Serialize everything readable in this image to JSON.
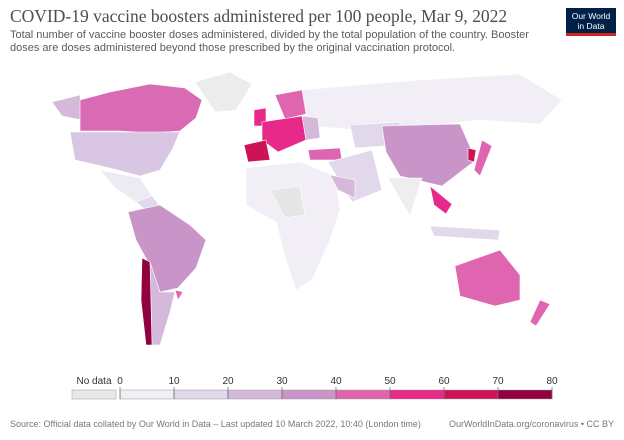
{
  "header": {
    "title": "COVID-19 vaccine boosters administered per 100 people, Mar 9, 2022",
    "subtitle": "Total number of vaccine booster doses administered, divided by the total population of the country. Booster doses are doses administered beyond those prescribed by the original vaccination protocol.",
    "logo": [
      "Our World",
      "in Data"
    ]
  },
  "legend": {
    "no_data_label": "No data",
    "no_data_color": "#e8e8e8",
    "ticks": [
      0,
      10,
      20,
      30,
      40,
      50,
      60,
      70,
      80
    ],
    "colors": [
      "#f1eef6",
      "#e2d8ec",
      "#d4b9da",
      "#c994c7",
      "#df65b0",
      "#e7298a",
      "#ce1256",
      "#91003f"
    ]
  },
  "footer": {
    "source": "Source: Official data collated by Our World in Data – Last updated 10 March 2022, 10:40 (London time)",
    "link": "OurWorldInData.org/coronavirus • CC BY"
  }
}
